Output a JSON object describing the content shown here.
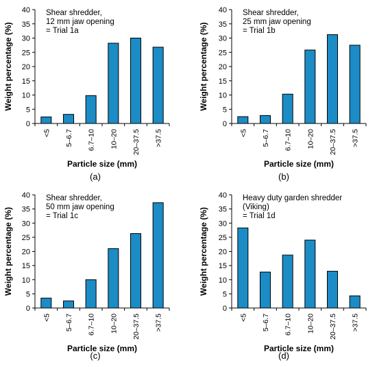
{
  "chart_data": [
    {
      "type": "bar",
      "panel_label": "(a)",
      "annotation": [
        "Shear shredder,",
        "12 mm jaw opening",
        "= Trial 1a"
      ],
      "categories": [
        "<5",
        "5–6.7",
        "6.7–10",
        "10–20",
        "20–37.5",
        ">37.5"
      ],
      "values": [
        2.3,
        3.2,
        9.8,
        28.2,
        30.0,
        26.8
      ],
      "xlabel": "Particle size (mm)",
      "ylabel": "Weight percentage (%)",
      "ylim": [
        0,
        40
      ],
      "yticks": [
        0,
        5,
        10,
        15,
        20,
        25,
        30,
        35,
        40
      ],
      "color": "#1b8cc5"
    },
    {
      "type": "bar",
      "panel_label": "(b)",
      "annotation": [
        "Shear shredder,",
        "25 mm jaw opening",
        "= Trial 1b"
      ],
      "categories": [
        "<5",
        "5–6.7",
        "6.7–10",
        "10–20",
        "20–37.5",
        ">37.5"
      ],
      "values": [
        2.4,
        2.8,
        10.3,
        25.8,
        31.2,
        27.5
      ],
      "xlabel": "Particle size (mm)",
      "ylabel": "Weight percentage (%)",
      "ylim": [
        0,
        40
      ],
      "yticks": [
        0,
        5,
        10,
        15,
        20,
        25,
        30,
        35,
        40
      ],
      "color": "#1b8cc5"
    },
    {
      "type": "bar",
      "panel_label": "(c)",
      "annotation": [
        "Shear shredder,",
        "50 mm jaw opening",
        "= Trial 1c"
      ],
      "categories": [
        "<5",
        "5–6.7",
        "6.7–10",
        "10–20",
        "20–37.5",
        ">37.5"
      ],
      "values": [
        3.5,
        2.5,
        10.0,
        21.0,
        26.3,
        37.2
      ],
      "xlabel": "Particle size (mm)",
      "ylabel": "Weight percentage (%)",
      "ylim": [
        0,
        40
      ],
      "yticks": [
        0,
        5,
        10,
        15,
        20,
        25,
        30,
        35,
        40
      ],
      "color": "#1b8cc5"
    },
    {
      "type": "bar",
      "panel_label": "(d)",
      "annotation": [
        "Heavy duty garden shredder",
        "(Viking)",
        "= Trial 1d"
      ],
      "categories": [
        "<5",
        "5–6.7",
        "6.7–10",
        "10–20",
        "20–37.5",
        ">37.5"
      ],
      "values": [
        28.3,
        12.7,
        18.7,
        24.0,
        13.0,
        4.3
      ],
      "xlabel": "Particle size (mm)",
      "ylabel": "Weight percentage (%)",
      "ylim": [
        0,
        40
      ],
      "yticks": [
        0,
        5,
        10,
        15,
        20,
        25,
        30,
        35,
        40
      ],
      "color": "#1b8cc5"
    }
  ]
}
